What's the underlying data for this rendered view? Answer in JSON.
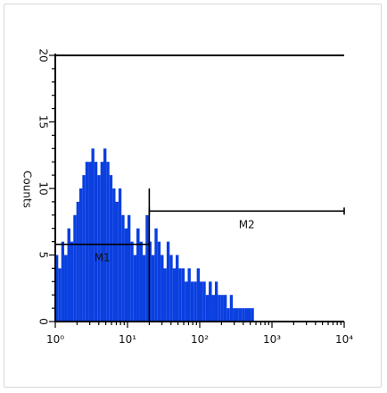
{
  "chart_data": {
    "type": "histogram",
    "title": "",
    "xlabel": "",
    "ylabel": "Counts",
    "x_scale": "log",
    "xlim": [
      1,
      10000
    ],
    "ylim": [
      0,
      20
    ],
    "x_tick_labels": [
      "10⁰",
      "10¹",
      "10²",
      "10³",
      "10⁴"
    ],
    "x_ticks": [
      1,
      10,
      100,
      1000,
      10000
    ],
    "y_tick_labels": [
      "0",
      "5",
      "10",
      "15",
      "20"
    ],
    "y_ticks": [
      0,
      5,
      10,
      15,
      20
    ],
    "grid": false,
    "bar_color": "#0a3fe0",
    "series": [
      {
        "x": [
          1.0,
          1.1,
          1.21,
          1.33,
          1.47,
          1.62,
          1.78,
          1.96,
          2.15,
          2.37,
          2.61,
          2.87,
          3.16,
          3.48,
          3.83,
          4.22,
          4.64,
          5.11,
          5.62,
          6.19,
          6.81,
          7.5,
          8.25,
          9.09,
          10.0,
          11.0,
          12.1,
          13.3,
          14.7,
          16.2,
          17.8,
          19.6,
          21.5,
          23.7,
          26.1,
          28.7,
          31.6,
          34.8,
          38.3,
          42.2,
          46.4,
          51.1,
          56.2,
          61.9,
          68.1,
          75.0,
          82.5,
          90.9,
          100,
          110,
          121,
          133,
          147,
          162,
          178,
          196,
          215,
          237,
          261,
          287,
          316,
          348,
          383,
          422,
          464,
          511,
          562,
          619,
          681,
          750,
          825,
          909,
          1000,
          1100,
          1210,
          1330,
          1470,
          1620,
          1780,
          1960,
          2150,
          2370,
          2610,
          2870,
          3160,
          3480,
          3830,
          4220,
          4640,
          5110,
          5620,
          6190,
          6810,
          7500,
          8250,
          9090
        ],
        "values": [
          5,
          4,
          6,
          5,
          7,
          6,
          8,
          9,
          10,
          11,
          12,
          12,
          13,
          12,
          11,
          12,
          13,
          12,
          11,
          10,
          9,
          10,
          8,
          7,
          8,
          6,
          5,
          7,
          6,
          5,
          8,
          6,
          5,
          7,
          6,
          5,
          4,
          6,
          5,
          4,
          5,
          4,
          4,
          3,
          4,
          3,
          3,
          4,
          3,
          3,
          2,
          3,
          2,
          3,
          2,
          2,
          2,
          1,
          2,
          1,
          1,
          1,
          1,
          1,
          1,
          1,
          0,
          0,
          0,
          0,
          0,
          0,
          0,
          0,
          0,
          0,
          0,
          0,
          0,
          0,
          0,
          0,
          0,
          0,
          0,
          0,
          0,
          0,
          0,
          0,
          0,
          0,
          0,
          0,
          0,
          0
        ]
      }
    ],
    "markers": [
      {
        "label": "M1",
        "x_start": 1,
        "x_end": 20,
        "y": 5.8
      },
      {
        "label": "M2",
        "x_start": 20,
        "x_end": 10000,
        "y": 8.3
      }
    ],
    "max_level": 20
  }
}
